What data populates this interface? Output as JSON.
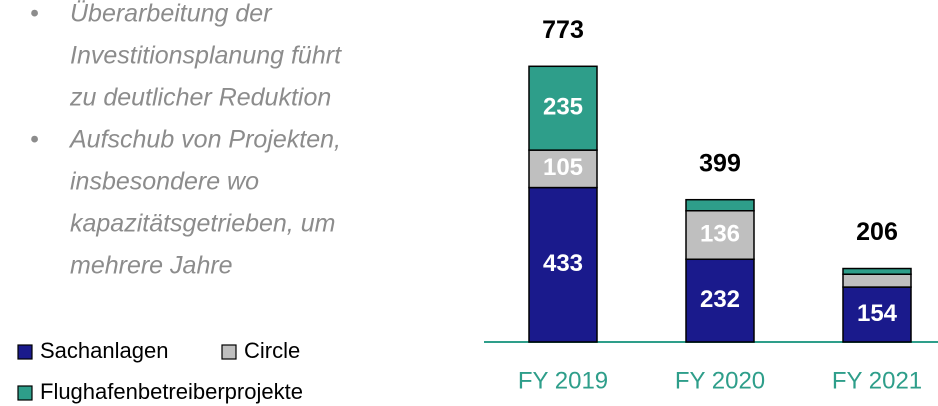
{
  "bullets": [
    [
      "Überarbeitung der",
      "Investitionsplanung führt",
      "zu deutlicher Reduktion"
    ],
    [
      "Aufschub von Projekten,",
      "insbesondere wo",
      "kapazitätsgetrieben, um",
      "mehrere Jahre"
    ]
  ],
  "chart_data": {
    "type": "stacked-bar",
    "categories": [
      "FY 2019",
      "FY 2020",
      "FY 2021"
    ],
    "series": [
      {
        "name": "Sachanlagen",
        "color": "#1a1a8c",
        "values": [
          433,
          232,
          154
        ],
        "value_labels": [
          "433",
          "232",
          "154"
        ]
      },
      {
        "name": "Circle",
        "color": "#bfbfbf",
        "values": [
          105,
          136,
          36
        ],
        "value_labels": [
          "105",
          "136",
          null
        ]
      },
      {
        "name": "Flughafenbetreiberprojekte",
        "color": "#2e9e8a",
        "values": [
          235,
          31,
          16
        ],
        "value_labels": [
          "235",
          null,
          null
        ]
      }
    ],
    "totals": [
      773,
      399,
      206
    ],
    "ylim": [
      0,
      900
    ]
  }
}
